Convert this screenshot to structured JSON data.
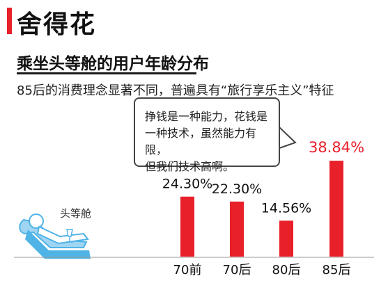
{
  "header": {
    "title": "舍得花"
  },
  "section": {
    "subtitle": "乘坐头等舱的用户年龄分布",
    "description": "85后的消费理念显著不同，普遍具有“旅行享乐主义”特征"
  },
  "bubble": {
    "lines": [
      "挣钱是一种能力，花钱是",
      "一种技术，虽然能力有限，",
      "但我们技术高啊。"
    ]
  },
  "seat_label": "头等舱",
  "colors": {
    "accent": "#e8202a",
    "bar": "#e8202a",
    "highlight_label": "#e8202a",
    "seat": "#4fb3e6"
  },
  "chart_data": {
    "type": "bar",
    "categories": [
      "70前",
      "70后",
      "80后",
      "85后"
    ],
    "values": [
      24.3,
      22.3,
      14.56,
      38.84
    ],
    "data_labels": [
      "24.30%",
      "22.30%",
      "14.56%",
      "38.84%"
    ],
    "ylim": [
      0,
      40
    ],
    "grid": false,
    "highlight_category": "85后"
  }
}
